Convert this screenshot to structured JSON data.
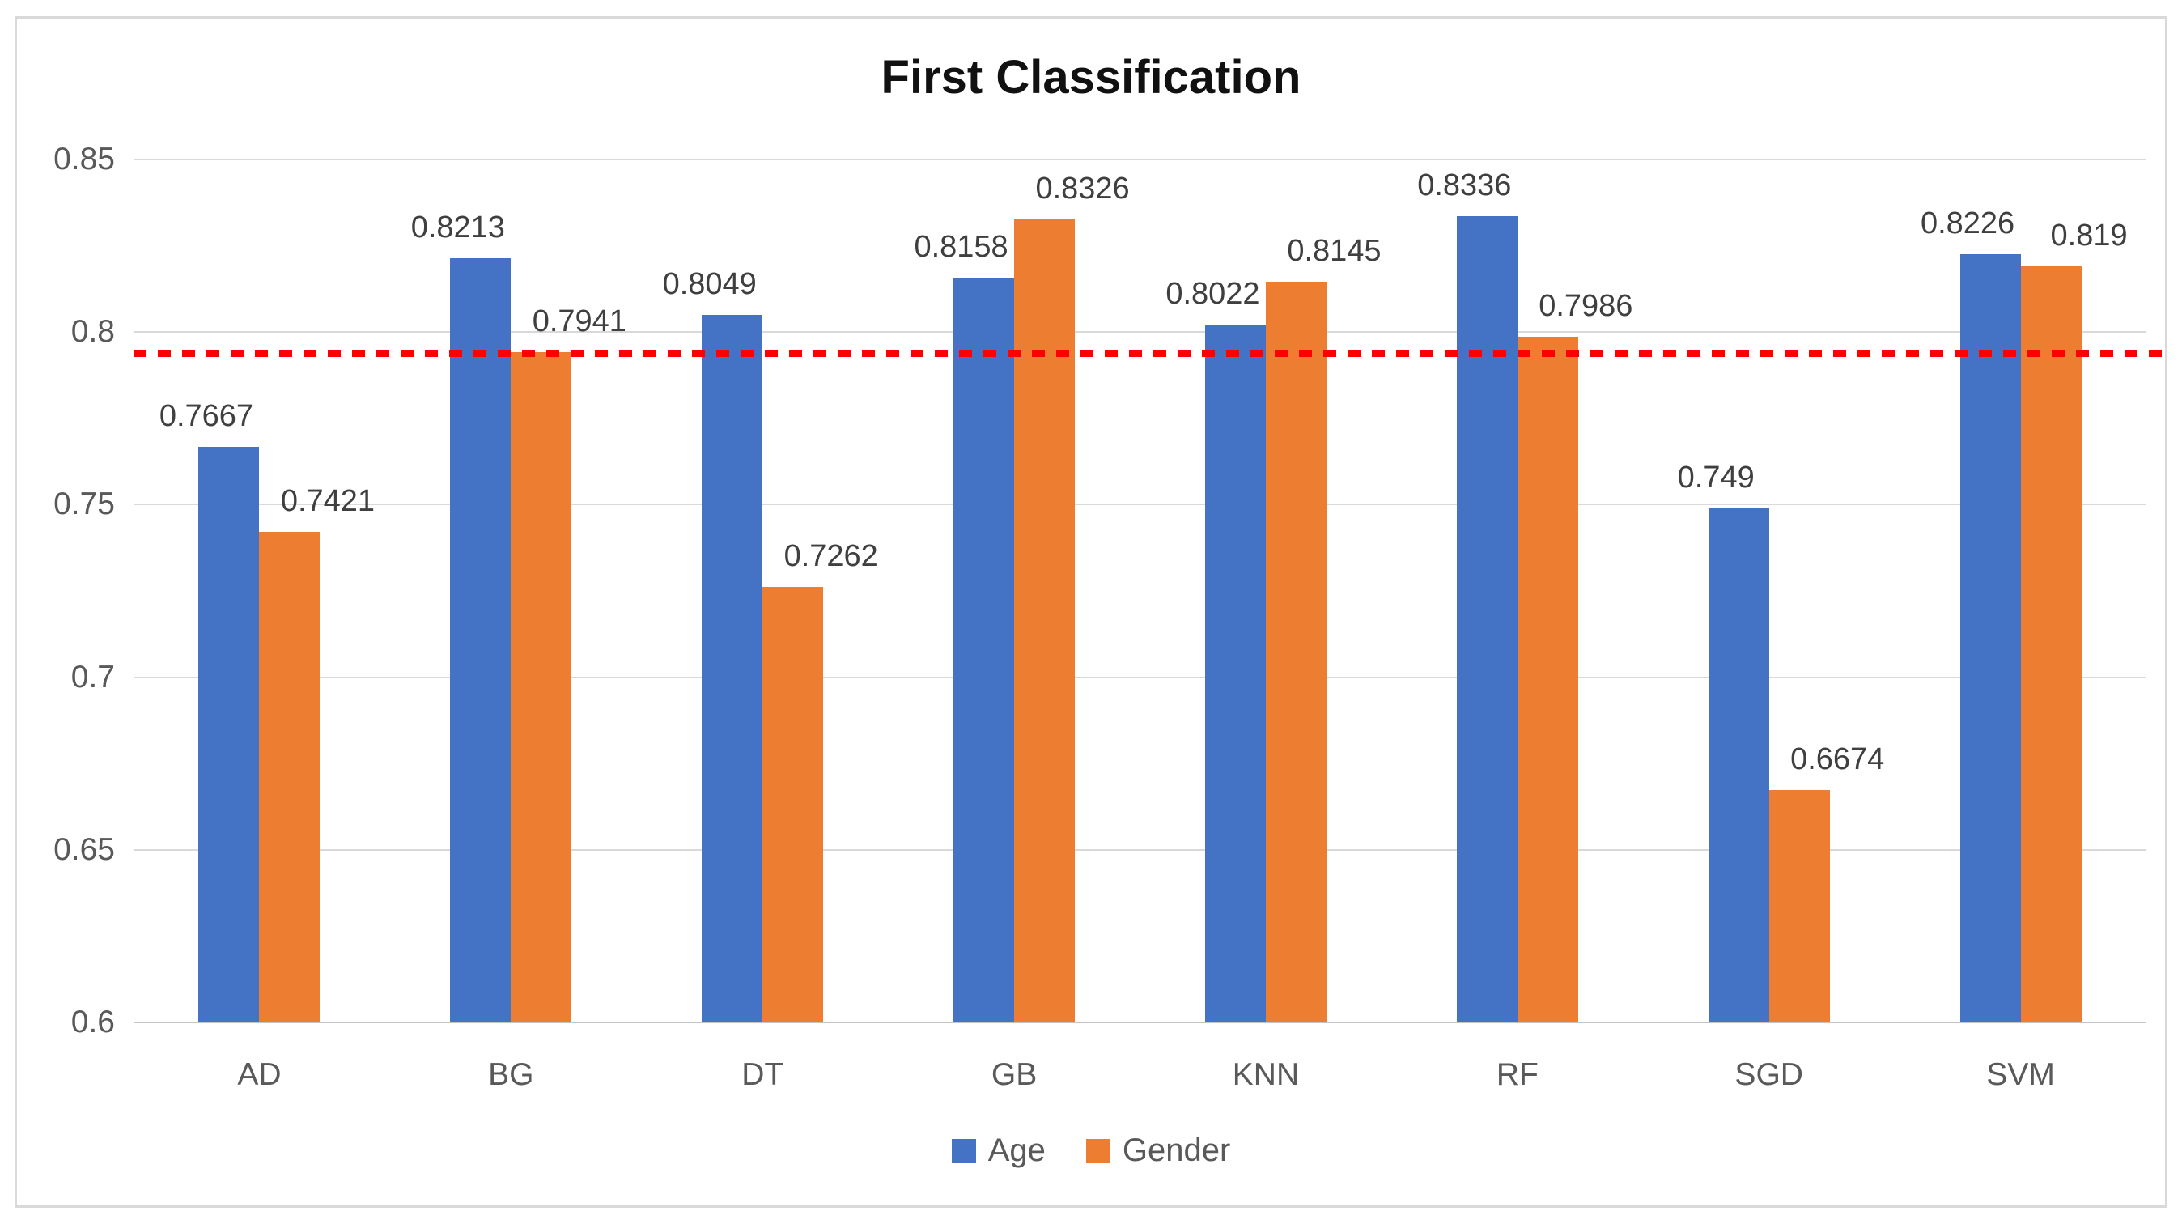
{
  "chart_data": {
    "type": "bar",
    "title": "First Classification",
    "categories": [
      "AD",
      "BG",
      "DT",
      "GB",
      "KNN",
      "RF",
      "SGD",
      "SVM"
    ],
    "series": [
      {
        "name": "Age",
        "color": "#4472C4",
        "values": [
          0.7667,
          0.8213,
          0.8049,
          0.8158,
          0.8022,
          0.8336,
          0.749,
          0.8226
        ],
        "labels": [
          "0.7667",
          "0.8213",
          "0.8049",
          "0.8158",
          "0.8022",
          "0.8336",
          "0.749",
          "0.8226"
        ]
      },
      {
        "name": "Gender",
        "color": "#ED7D31",
        "values": [
          0.7421,
          0.7941,
          0.7262,
          0.8326,
          0.8145,
          0.7986,
          0.6674,
          0.819
        ],
        "labels": [
          "0.7421",
          "0.7941",
          "0.7262",
          "0.8326",
          "0.8145",
          "0.7986",
          "0.6674",
          "0.819"
        ]
      }
    ],
    "y_axis": {
      "min": 0.6,
      "max": 0.85,
      "step": 0.05,
      "tick_labels": [
        "0.85",
        "0.8",
        "0.75",
        "0.7",
        "0.65",
        "0.6"
      ]
    },
    "ylim": [
      0.6,
      0.85
    ],
    "grid": true,
    "reference_line": {
      "value": 0.794,
      "color": "#FE0000",
      "style": "dotted"
    },
    "legend": {
      "position": "bottom",
      "entries": [
        {
          "label": "Age",
          "color": "#4472C4"
        },
        {
          "label": "Gender",
          "color": "#ED7D31"
        }
      ]
    }
  },
  "colors": {
    "age_blue": "#4472C4",
    "gender_orange": "#ED7D31",
    "gridline_gray": "#D9D9D9",
    "reference_red": "#FE0000",
    "tick_text": "#595959",
    "value_text": "#3F3F3F",
    "title_text": "#111111"
  }
}
